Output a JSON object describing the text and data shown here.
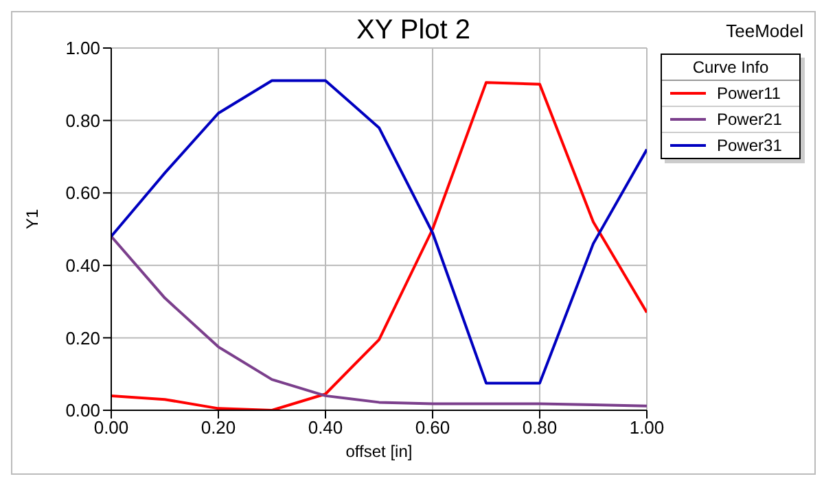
{
  "chart_data": {
    "type": "line",
    "title": "XY Plot 2",
    "xlabel": "offset [in]",
    "ylabel": "Y1",
    "legend_title": "Curve Info",
    "annotations": [
      "TeeModel"
    ],
    "x": [
      0,
      0.1,
      0.2,
      0.3,
      0.4,
      0.5,
      0.6,
      0.7,
      0.8,
      0.9,
      1.0
    ],
    "series": [
      {
        "name": "Power11",
        "color": "#ff0000",
        "values": [
          0.04,
          0.03,
          0.005,
          0.0,
          0.045,
          0.195,
          0.5,
          0.905,
          0.9,
          0.52,
          0.27
        ]
      },
      {
        "name": "Power21",
        "color": "#7b3f8c",
        "values": [
          0.48,
          0.31,
          0.175,
          0.085,
          0.04,
          0.022,
          0.018,
          0.018,
          0.018,
          0.015,
          0.012
        ]
      },
      {
        "name": "Power31",
        "color": "#0000c0",
        "values": [
          0.48,
          0.655,
          0.82,
          0.91,
          0.91,
          0.78,
          0.49,
          0.075,
          0.075,
          0.46,
          0.72
        ]
      }
    ],
    "xlim": [
      0,
      1
    ],
    "xticks": [
      {
        "value": 0,
        "label": "0.00"
      },
      {
        "value": 0.2,
        "label": "0.20"
      },
      {
        "value": 0.4,
        "label": "0.40"
      },
      {
        "value": 0.6,
        "label": "0.60"
      },
      {
        "value": 0.8,
        "label": "0.80"
      },
      {
        "value": 1,
        "label": "1.00"
      }
    ],
    "ylim": [
      0,
      1
    ],
    "yticks": [
      {
        "value": 0,
        "label": "0.00"
      },
      {
        "value": 0.2,
        "label": "0.20"
      },
      {
        "value": 0.4,
        "label": "0.40"
      },
      {
        "value": 0.6,
        "label": "0.60"
      },
      {
        "value": 0.8,
        "label": "0.80"
      },
      {
        "value": 1,
        "label": "1.00"
      }
    ],
    "grid": true,
    "legend": "top right",
    "marker": "none",
    "line_style": "solid"
  }
}
